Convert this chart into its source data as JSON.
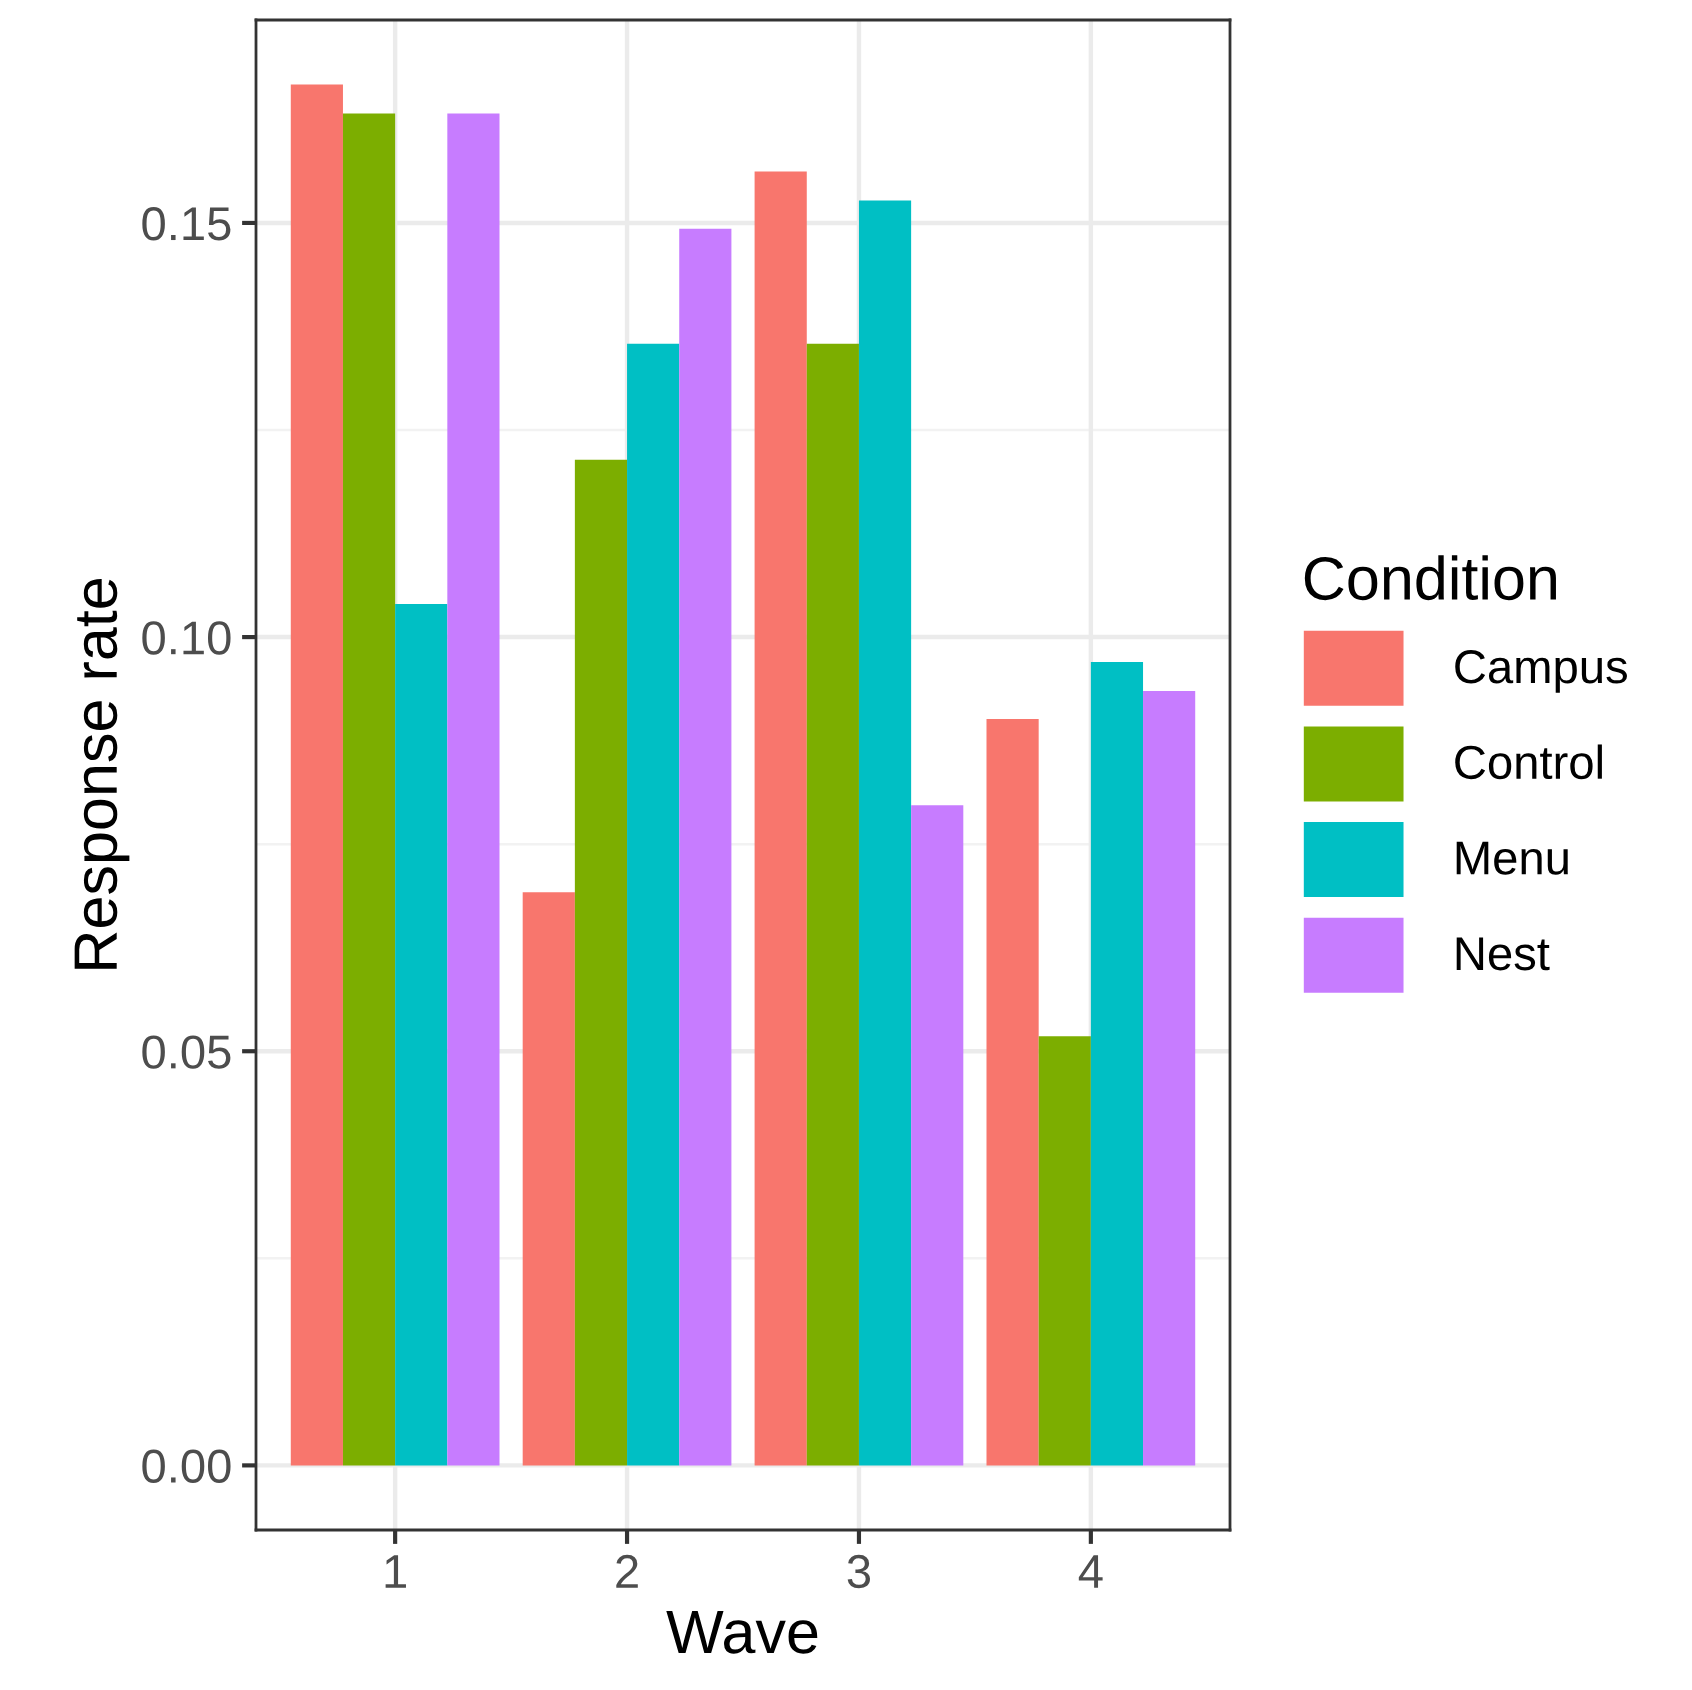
{
  "chart_data": {
    "type": "bar",
    "xlabel": "Wave",
    "ylabel": "Response rate",
    "legend_title": "Condition",
    "categories": [
      "1",
      "2",
      "3",
      "4"
    ],
    "series": [
      {
        "name": "Campus",
        "color": "#f8766d",
        "values": [
          0.1667,
          0.0692,
          0.1562,
          0.0901
        ]
      },
      {
        "name": "Control",
        "color": "#7cae00",
        "values": [
          0.1632,
          0.1214,
          0.1354,
          0.0518
        ]
      },
      {
        "name": "Menu",
        "color": "#00bfc4",
        "values": [
          0.104,
          0.1354,
          0.1527,
          0.097
        ]
      },
      {
        "name": "Nest",
        "color": "#c77cff",
        "values": [
          0.1632,
          0.1493,
          0.0797,
          0.0935
        ]
      }
    ],
    "ylim": [
      -0.0078,
      0.1745
    ],
    "yticks": [
      {
        "value": 0,
        "label": "0.00"
      },
      {
        "value": 0.05,
        "label": "0.05"
      },
      {
        "value": 0.1,
        "label": "0.10"
      },
      {
        "value": 0.15,
        "label": "0.15"
      }
    ],
    "grid": true,
    "legend": "right"
  }
}
